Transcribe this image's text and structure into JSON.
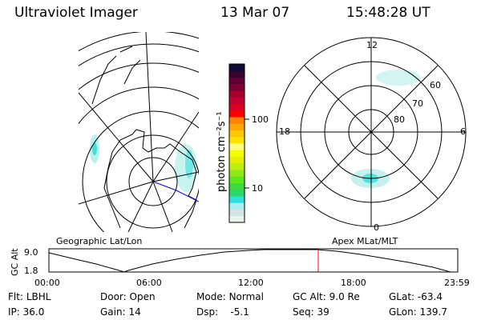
{
  "header": {
    "instrument": "Ultraviolet Imager",
    "date": "13 Mar 07",
    "time": "15:48:28 UT"
  },
  "colorbar": {
    "label": "photon cm⁻²s⁻¹",
    "ticks": [
      "10",
      "100"
    ],
    "scale": "log",
    "colors": [
      "#eaf4ee",
      "#d4e4e2",
      "#a8eef2",
      "#2ee0dc",
      "#2ad86a",
      "#3cd840",
      "#5ae81a",
      "#8ee81a",
      "#bcf00e",
      "#e4ec00",
      "#f4fc00",
      "#fcfc80",
      "#fce400",
      "#fcc800",
      "#fca800",
      "#fc8400",
      "#fc0000",
      "#dc0028",
      "#c40030",
      "#a8002c",
      "#7c0030",
      "#600034",
      "#3c0030",
      "#0c0c38"
    ]
  },
  "geo_map": {
    "label": "Geographic Lat/Lon"
  },
  "polar_plot": {
    "label": "Apex MLat/MLT",
    "mlt_labels": [
      "12",
      "18",
      "6",
      "0"
    ],
    "lat_labels": [
      "60",
      "70",
      "80"
    ]
  },
  "altitude_plot": {
    "ylabel": "GC Alt",
    "yticks": [
      "9.0",
      "1.8"
    ],
    "xticks": [
      "00:00",
      "06:00",
      "12:00",
      "18:00",
      "23:59"
    ],
    "current_time_marker": "15:48",
    "marker_color": "#ff0000"
  },
  "info": {
    "filter": {
      "label": "Flt:",
      "value": "LBHL"
    },
    "ip": {
      "label": "IP:",
      "value": "36.0"
    },
    "door": {
      "label": "Door:",
      "value": "Open"
    },
    "gain": {
      "label": "Gain:",
      "value": "14"
    },
    "mode": {
      "label": "Mode:",
      "value": "Normal"
    },
    "dsp": {
      "label": "Dsp:",
      "value": "-5.1"
    },
    "gc_alt": {
      "label": "GC Alt:",
      "value": "9.0 Re"
    },
    "seq": {
      "label": "Seq:",
      "value": "39"
    },
    "glat": {
      "label": "GLat:",
      "value": "-63.4"
    },
    "glon": {
      "label": "GLon:",
      "value": "139.7"
    }
  }
}
